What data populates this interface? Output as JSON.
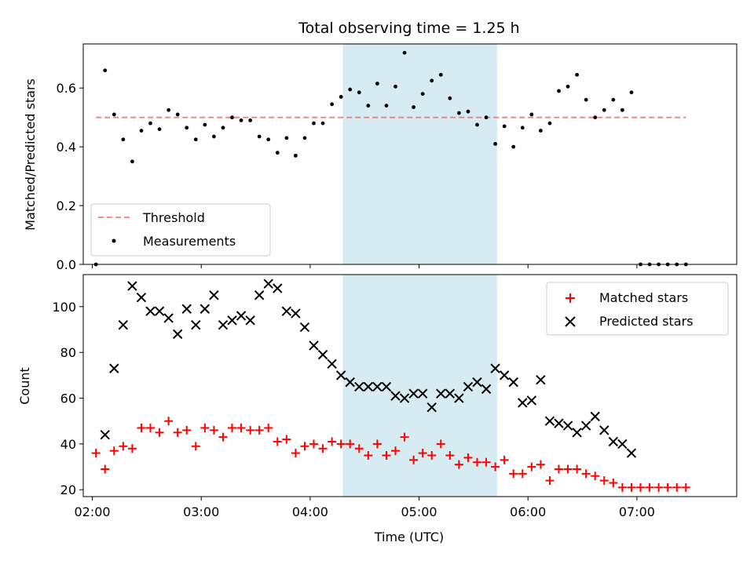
{
  "chart_data": [
    {
      "type": "scatter",
      "title": "Total observing time = 1.25 h",
      "xlabel": "",
      "ylabel": "Matched/Predicted stars",
      "ylim": [
        0,
        0.75
      ],
      "yticks": [
        0.0,
        0.2,
        0.4,
        0.6
      ],
      "ytick_labels": [
        "0.0",
        "0.2",
        "0.4",
        "0.6"
      ],
      "x_axis_type": "time",
      "xlim": [
        "01:55",
        "07:55"
      ],
      "grid": false,
      "legend_position": "lower-left",
      "shaded_interval": {
        "start": "04:18",
        "end": "05:43",
        "color": "#add8e6"
      },
      "threshold": {
        "name": "Threshold",
        "y": 0.5,
        "x_start": "02:02",
        "x_end": "07:27",
        "color": "#f08080",
        "style": "dashed"
      },
      "series": [
        {
          "name": "Measurements",
          "marker": "dot",
          "color": "#000000",
          "points": [
            [
              "02:02",
              0.0
            ],
            [
              "02:07",
              0.66
            ],
            [
              "02:12",
              0.51
            ],
            [
              "02:17",
              0.425
            ],
            [
              "02:22",
              0.35
            ],
            [
              "02:27",
              0.455
            ],
            [
              "02:32",
              0.48
            ],
            [
              "02:37",
              0.46
            ],
            [
              "02:42",
              0.525
            ],
            [
              "02:47",
              0.51
            ],
            [
              "02:52",
              0.465
            ],
            [
              "02:57",
              0.425
            ],
            [
              "03:02",
              0.475
            ],
            [
              "03:07",
              0.435
            ],
            [
              "03:12",
              0.465
            ],
            [
              "03:17",
              0.5
            ],
            [
              "03:22",
              0.49
            ],
            [
              "03:27",
              0.49
            ],
            [
              "03:32",
              0.435
            ],
            [
              "03:37",
              0.425
            ],
            [
              "03:42",
              0.38
            ],
            [
              "03:47",
              0.43
            ],
            [
              "03:52",
              0.37
            ],
            [
              "03:57",
              0.43
            ],
            [
              "04:02",
              0.48
            ],
            [
              "04:07",
              0.48
            ],
            [
              "04:12",
              0.545
            ],
            [
              "04:17",
              0.57
            ],
            [
              "04:22",
              0.595
            ],
            [
              "04:27",
              0.585
            ],
            [
              "04:32",
              0.54
            ],
            [
              "04:37",
              0.615
            ],
            [
              "04:42",
              0.54
            ],
            [
              "04:47",
              0.605
            ],
            [
              "04:52",
              0.72
            ],
            [
              "04:57",
              0.535
            ],
            [
              "05:02",
              0.58
            ],
            [
              "05:07",
              0.625
            ],
            [
              "05:12",
              0.645
            ],
            [
              "05:17",
              0.565
            ],
            [
              "05:22",
              0.515
            ],
            [
              "05:27",
              0.52
            ],
            [
              "05:32",
              0.475
            ],
            [
              "05:37",
              0.5
            ],
            [
              "05:42",
              0.41
            ],
            [
              "05:47",
              0.47
            ],
            [
              "05:52",
              0.4
            ],
            [
              "05:57",
              0.465
            ],
            [
              "06:02",
              0.51
            ],
            [
              "06:07",
              0.455
            ],
            [
              "06:12",
              0.48
            ],
            [
              "06:17",
              0.59
            ],
            [
              "06:22",
              0.605
            ],
            [
              "06:27",
              0.645
            ],
            [
              "06:32",
              0.56
            ],
            [
              "06:37",
              0.5
            ],
            [
              "06:42",
              0.525
            ],
            [
              "06:47",
              0.56
            ],
            [
              "06:52",
              0.525
            ],
            [
              "06:57",
              0.585
            ],
            [
              "07:02",
              0.0
            ],
            [
              "07:07",
              0.0
            ],
            [
              "07:12",
              0.0
            ],
            [
              "07:17",
              0.0
            ],
            [
              "07:22",
              0.0
            ],
            [
              "07:27",
              0.0
            ]
          ]
        }
      ]
    },
    {
      "type": "scatter",
      "xlabel": "Time (UTC)",
      "ylabel": "Count",
      "ylim": [
        17,
        114
      ],
      "yticks": [
        20,
        40,
        60,
        80,
        100
      ],
      "ytick_labels": [
        "20",
        "40",
        "60",
        "80",
        "100"
      ],
      "x_axis_type": "time",
      "xlim": [
        "01:55",
        "07:55"
      ],
      "xticks": [
        "02:00",
        "03:00",
        "04:00",
        "05:00",
        "06:00",
        "07:00"
      ],
      "xtick_labels": [
        "02:00",
        "03:00",
        "04:00",
        "05:00",
        "06:00",
        "07:00"
      ],
      "grid": false,
      "legend_position": "upper-right",
      "shaded_interval": {
        "start": "04:18",
        "end": "05:43",
        "color": "#add8e6"
      },
      "series": [
        {
          "name": "Matched stars",
          "marker": "plus",
          "color": "#ff0000",
          "points": [
            [
              "02:02",
              36
            ],
            [
              "02:07",
              29
            ],
            [
              "02:12",
              37
            ],
            [
              "02:17",
              39
            ],
            [
              "02:22",
              38
            ],
            [
              "02:27",
              47
            ],
            [
              "02:32",
              47
            ],
            [
              "02:37",
              45
            ],
            [
              "02:42",
              50
            ],
            [
              "02:47",
              45
            ],
            [
              "02:52",
              46
            ],
            [
              "02:57",
              39
            ],
            [
              "03:02",
              47
            ],
            [
              "03:07",
              46
            ],
            [
              "03:12",
              43
            ],
            [
              "03:17",
              47
            ],
            [
              "03:22",
              47
            ],
            [
              "03:27",
              46
            ],
            [
              "03:32",
              46
            ],
            [
              "03:37",
              47
            ],
            [
              "03:42",
              41
            ],
            [
              "03:47",
              42
            ],
            [
              "03:52",
              36
            ],
            [
              "03:57",
              39
            ],
            [
              "04:02",
              40
            ],
            [
              "04:07",
              38
            ],
            [
              "04:12",
              41
            ],
            [
              "04:17",
              40
            ],
            [
              "04:22",
              40
            ],
            [
              "04:27",
              38
            ],
            [
              "04:32",
              35
            ],
            [
              "04:37",
              40
            ],
            [
              "04:42",
              35
            ],
            [
              "04:47",
              37
            ],
            [
              "04:52",
              43
            ],
            [
              "04:57",
              33
            ],
            [
              "05:02",
              36
            ],
            [
              "05:07",
              35
            ],
            [
              "05:12",
              40
            ],
            [
              "05:17",
              35
            ],
            [
              "05:22",
              31
            ],
            [
              "05:27",
              34
            ],
            [
              "05:32",
              32
            ],
            [
              "05:37",
              32
            ],
            [
              "05:42",
              30
            ],
            [
              "05:47",
              33
            ],
            [
              "05:52",
              27
            ],
            [
              "05:57",
              27
            ],
            [
              "06:02",
              30
            ],
            [
              "06:07",
              31
            ],
            [
              "06:12",
              24
            ],
            [
              "06:17",
              29
            ],
            [
              "06:22",
              29
            ],
            [
              "06:27",
              29
            ],
            [
              "06:32",
              27
            ],
            [
              "06:37",
              26
            ],
            [
              "06:42",
              24
            ],
            [
              "06:47",
              23
            ],
            [
              "06:52",
              21
            ],
            [
              "06:57",
              21
            ],
            [
              "07:02",
              21
            ],
            [
              "07:07",
              21
            ],
            [
              "07:12",
              21
            ],
            [
              "07:17",
              21
            ],
            [
              "07:22",
              21
            ],
            [
              "07:27",
              21
            ]
          ]
        },
        {
          "name": "Predicted stars",
          "marker": "x",
          "color": "#000000",
          "points": [
            [
              "02:07",
              44
            ],
            [
              "02:12",
              73
            ],
            [
              "02:17",
              92
            ],
            [
              "02:22",
              109
            ],
            [
              "02:27",
              104
            ],
            [
              "02:32",
              98
            ],
            [
              "02:37",
              98
            ],
            [
              "02:42",
              95
            ],
            [
              "02:47",
              88
            ],
            [
              "02:52",
              99
            ],
            [
              "02:57",
              92
            ],
            [
              "03:02",
              99
            ],
            [
              "03:07",
              105
            ],
            [
              "03:12",
              92
            ],
            [
              "03:17",
              94
            ],
            [
              "03:22",
              96
            ],
            [
              "03:27",
              94
            ],
            [
              "03:32",
              105
            ],
            [
              "03:37",
              110
            ],
            [
              "03:42",
              108
            ],
            [
              "03:47",
              98
            ],
            [
              "03:52",
              97
            ],
            [
              "03:57",
              91
            ],
            [
              "04:02",
              83
            ],
            [
              "04:07",
              79
            ],
            [
              "04:12",
              75
            ],
            [
              "04:17",
              70
            ],
            [
              "04:22",
              67
            ],
            [
              "04:27",
              65
            ],
            [
              "04:32",
              65
            ],
            [
              "04:37",
              65
            ],
            [
              "04:42",
              65
            ],
            [
              "04:47",
              61
            ],
            [
              "04:52",
              60
            ],
            [
              "04:57",
              62
            ],
            [
              "05:02",
              62
            ],
            [
              "05:07",
              56
            ],
            [
              "05:12",
              62
            ],
            [
              "05:17",
              62
            ],
            [
              "05:22",
              60
            ],
            [
              "05:27",
              65
            ],
            [
              "05:32",
              67
            ],
            [
              "05:37",
              64
            ],
            [
              "05:42",
              73
            ],
            [
              "05:47",
              70
            ],
            [
              "05:52",
              67
            ],
            [
              "05:57",
              58
            ],
            [
              "06:02",
              59
            ],
            [
              "06:07",
              68
            ],
            [
              "06:12",
              50
            ],
            [
              "06:17",
              49
            ],
            [
              "06:22",
              48
            ],
            [
              "06:27",
              45
            ],
            [
              "06:32",
              48
            ],
            [
              "06:37",
              52
            ],
            [
              "06:42",
              46
            ],
            [
              "06:47",
              41
            ],
            [
              "06:52",
              40
            ],
            [
              "06:57",
              36
            ]
          ]
        }
      ]
    }
  ]
}
